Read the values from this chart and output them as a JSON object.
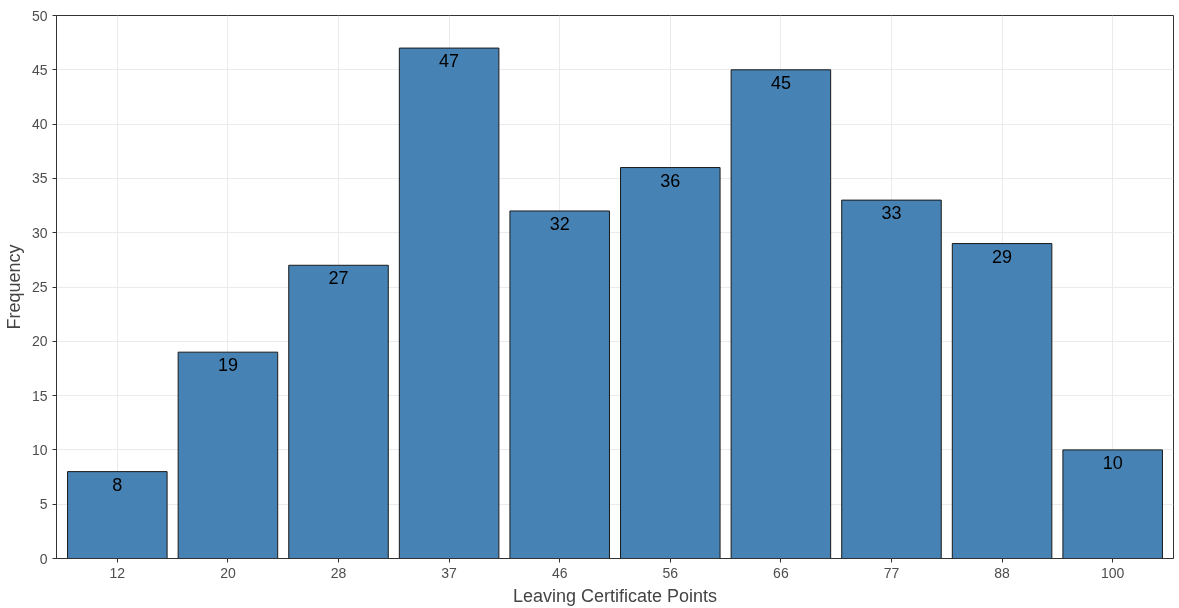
{
  "chart_data": {
    "type": "bar",
    "xlabel": "Leaving Certificate Points",
    "ylabel": "Frequency",
    "categories": [
      "12",
      "20",
      "28",
      "37",
      "46",
      "56",
      "66",
      "77",
      "88",
      "100"
    ],
    "values": [
      8,
      19,
      27,
      47,
      32,
      36,
      45,
      33,
      29,
      10
    ],
    "color": "#4682b4",
    "ylim": [
      0,
      50
    ],
    "yticks": [
      0,
      5,
      10,
      15,
      20,
      25,
      30,
      35,
      40,
      45,
      50
    ],
    "grid": true,
    "data_labels": true
  }
}
